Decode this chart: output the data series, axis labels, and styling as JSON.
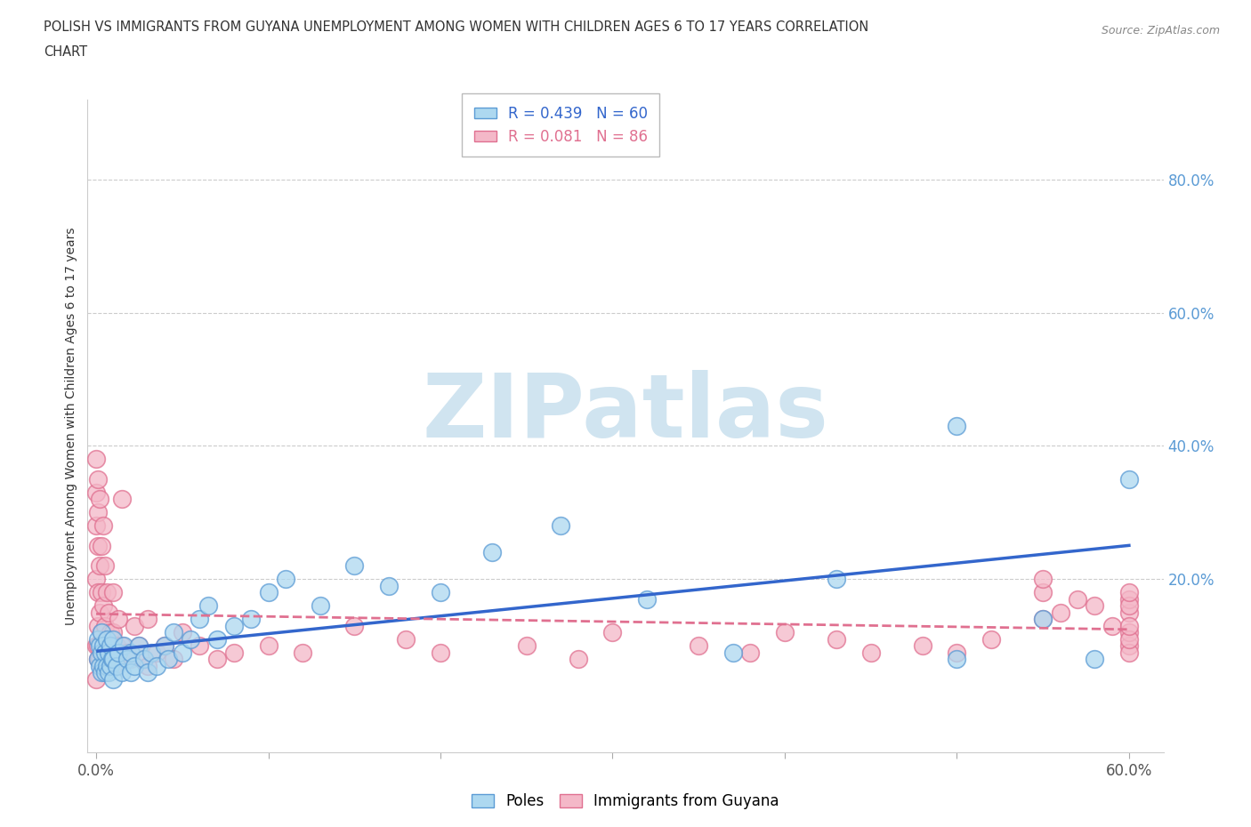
{
  "title_line1": "POLISH VS IMMIGRANTS FROM GUYANA UNEMPLOYMENT AMONG WOMEN WITH CHILDREN AGES 6 TO 17 YEARS CORRELATION",
  "title_line2": "CHART",
  "source": "Source: ZipAtlas.com",
  "ylabel_left": "Unemployment Among Women with Children Ages 6 to 17 years",
  "xlim": [
    -0.005,
    0.62
  ],
  "ylim": [
    -0.06,
    0.92
  ],
  "xtick_pos": [
    0.0,
    0.1,
    0.2,
    0.3,
    0.4,
    0.5,
    0.6
  ],
  "xtick_labels": [
    "0.0%",
    "",
    "",
    "",
    "",
    "",
    "60.0%"
  ],
  "ytick_right": [
    0.2,
    0.4,
    0.6,
    0.8
  ],
  "ytick_right_labels": [
    "20.0%",
    "40.0%",
    "60.0%",
    "80.0%"
  ],
  "poles_R": 0.439,
  "poles_N": 60,
  "guyana_R": 0.081,
  "guyana_N": 86,
  "poles_color": "#ADD8F0",
  "poles_edge_color": "#5B9BD5",
  "guyana_color": "#F4B8C8",
  "guyana_edge_color": "#E07090",
  "trend_poles_color": "#3366CC",
  "trend_guyana_color": "#E07090",
  "watermark": "ZIPatlas",
  "watermark_color": "#D0E4F0",
  "background_color": "#FFFFFF",
  "poles_x": [
    0.001,
    0.001,
    0.002,
    0.002,
    0.003,
    0.003,
    0.003,
    0.004,
    0.004,
    0.005,
    0.005,
    0.006,
    0.006,
    0.007,
    0.007,
    0.008,
    0.008,
    0.009,
    0.01,
    0.01,
    0.01,
    0.012,
    0.013,
    0.015,
    0.016,
    0.018,
    0.02,
    0.02,
    0.022,
    0.025,
    0.028,
    0.03,
    0.032,
    0.035,
    0.04,
    0.042,
    0.045,
    0.05,
    0.055,
    0.06,
    0.065,
    0.07,
    0.08,
    0.09,
    0.1,
    0.11,
    0.13,
    0.15,
    0.17,
    0.2,
    0.23,
    0.27,
    0.32,
    0.37,
    0.43,
    0.5,
    0.5,
    0.55,
    0.58,
    0.6
  ],
  "poles_y": [
    0.08,
    0.11,
    0.07,
    0.1,
    0.06,
    0.09,
    0.12,
    0.07,
    0.1,
    0.06,
    0.09,
    0.07,
    0.11,
    0.06,
    0.09,
    0.07,
    0.1,
    0.08,
    0.05,
    0.08,
    0.11,
    0.07,
    0.09,
    0.06,
    0.1,
    0.08,
    0.06,
    0.09,
    0.07,
    0.1,
    0.08,
    0.06,
    0.09,
    0.07,
    0.1,
    0.08,
    0.12,
    0.09,
    0.11,
    0.14,
    0.16,
    0.11,
    0.13,
    0.14,
    0.18,
    0.2,
    0.16,
    0.22,
    0.19,
    0.18,
    0.24,
    0.28,
    0.17,
    0.09,
    0.2,
    0.08,
    0.43,
    0.14,
    0.08,
    0.35
  ],
  "guyana_x": [
    0.0,
    0.0,
    0.0,
    0.0,
    0.0,
    0.0,
    0.001,
    0.001,
    0.001,
    0.001,
    0.001,
    0.001,
    0.001,
    0.002,
    0.002,
    0.002,
    0.002,
    0.003,
    0.003,
    0.003,
    0.003,
    0.004,
    0.004,
    0.004,
    0.005,
    0.005,
    0.005,
    0.006,
    0.006,
    0.007,
    0.007,
    0.008,
    0.009,
    0.01,
    0.01,
    0.01,
    0.012,
    0.013,
    0.015,
    0.015,
    0.018,
    0.02,
    0.022,
    0.025,
    0.028,
    0.03,
    0.03,
    0.035,
    0.04,
    0.045,
    0.05,
    0.06,
    0.07,
    0.08,
    0.1,
    0.12,
    0.15,
    0.18,
    0.2,
    0.25,
    0.28,
    0.3,
    0.35,
    0.38,
    0.4,
    0.43,
    0.45,
    0.48,
    0.5,
    0.52,
    0.55,
    0.55,
    0.55,
    0.56,
    0.57,
    0.58,
    0.59,
    0.6,
    0.6,
    0.6,
    0.6,
    0.6,
    0.6,
    0.6,
    0.6,
    0.6
  ],
  "guyana_y": [
    0.05,
    0.1,
    0.2,
    0.28,
    0.33,
    0.38,
    0.08,
    0.13,
    0.18,
    0.25,
    0.3,
    0.35,
    0.1,
    0.08,
    0.15,
    0.22,
    0.32,
    0.07,
    0.12,
    0.18,
    0.25,
    0.09,
    0.16,
    0.28,
    0.07,
    0.13,
    0.22,
    0.1,
    0.18,
    0.08,
    0.15,
    0.12,
    0.09,
    0.07,
    0.12,
    0.18,
    0.1,
    0.14,
    0.1,
    0.32,
    0.09,
    0.08,
    0.13,
    0.1,
    0.08,
    0.07,
    0.14,
    0.09,
    0.1,
    0.08,
    0.12,
    0.1,
    0.08,
    0.09,
    0.1,
    0.09,
    0.13,
    0.11,
    0.09,
    0.1,
    0.08,
    0.12,
    0.1,
    0.09,
    0.12,
    0.11,
    0.09,
    0.1,
    0.09,
    0.11,
    0.14,
    0.18,
    0.2,
    0.15,
    0.17,
    0.16,
    0.13,
    0.1,
    0.12,
    0.15,
    0.17,
    0.09,
    0.11,
    0.13,
    0.16,
    0.18
  ]
}
